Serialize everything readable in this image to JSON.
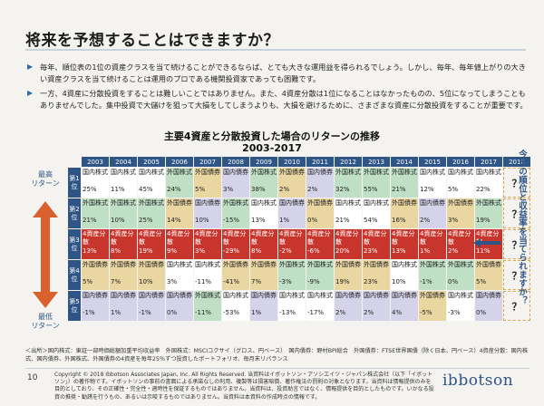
{
  "header": {
    "top_tag_a": "",
    "top_tag_b": ""
  },
  "slide": {
    "title": "将来を予想することはできますか？",
    "paragraph1": "毎年、順位表の1位の資産クラスを当て続けることができるならば、とても大きな運用益を得られるでしょう。しかし、毎年、毎年値上がりの大きい資産クラスを当て続けることは運用のプロである機関投資家であっても困難です。",
    "paragraph2": "一方、4資産に分散投資をすることは難しいことではありません。また、4資産分散は1位になることはなかったものの、5位になってしまうこともありませんでした。集中投資で大儲けを狙って大損をしてしまうよりも、大損を避けるために、さまざまな資産に分散投資をすることが重要です。",
    "chart_title": "主要4資産と分散投資した場合のリターンの推移",
    "chart_subtitle": "2003-2017",
    "side_top": "最高\nリターン",
    "side_bottom": "最低\nリターン",
    "vertical_note": "今後の順位と収益率を当てられますか？",
    "source": "＜出所＞国内株式：東証一部時価総額加重平均収益率　外国株式：MSCIコクサイ（グロス、円ベース）　国内債券：野村BPI総合　外国債券：FTSE世界国債（除く日本、円ベース）4資産分散：国内株式、国内債券、外国株式、外国債券の4資産を毎年25％ずつ投資したポートフォリオ、毎月末リバランス",
    "page_number": "10",
    "copyright": "Copyright © 2018 Ibbotson Associates Japan, Inc. All Rights Reserved. 当資料はイボットソン・アソシエイツ・ジャパン株式会社（以下「イボットソン」）の著作物です。イボットソンの事前の書面による承諾なしの利用、複製等は損害賠償、著作権法の罰則の対象となります。当資料は情報提供のみを目的としており、その正確性・完全性・適時性を保証するものではありません。当資料は、投資助言ではなく、情報提供を目的としたものです。いかなる投資の推奨・勧誘を行うもの、あるいは示唆するものではありません。当資料は本資料の作成時点の情報です。",
    "logo": "ibbotson"
  },
  "chart_data": {
    "type": "table",
    "years": [
      "2003",
      "2004",
      "2005",
      "2006",
      "2007",
      "2008",
      "2009",
      "2010",
      "2011",
      "2012",
      "2013",
      "2014",
      "2015",
      "2016",
      "2017",
      "2018"
    ],
    "ranks": [
      "第1位",
      "第2位",
      "第3位",
      "第4位",
      "第5位"
    ],
    "future_value": "？",
    "colors": {
      "国内株式": "#ffffff",
      "外国株式": "#bfe0c4",
      "国内債券": "#d5d3ea",
      "外国債券": "#e9d6a0",
      "4資産分散": "#c8352c"
    },
    "rows": [
      [
        [
          "国内株式",
          "25%"
        ],
        [
          "国内株式",
          "11%"
        ],
        [
          "国内株式",
          "45%"
        ],
        [
          "外国株式",
          "24%"
        ],
        [
          "外国債券",
          "5%"
        ],
        [
          "国内債券",
          "3%"
        ],
        [
          "外国株式",
          "38%"
        ],
        [
          "外国債券",
          "2%"
        ],
        [
          "国内債券",
          "2%"
        ],
        [
          "外国株式",
          "32%"
        ],
        [
          "外国株式",
          "55%"
        ],
        [
          "外国株式",
          "21%"
        ],
        [
          "国内株式",
          "12%"
        ],
        [
          "国内株式",
          "5%"
        ],
        [
          "国内株式",
          "22%"
        ]
      ],
      [
        [
          "外国株式",
          "21%"
        ],
        [
          "外国株式",
          "10%"
        ],
        [
          "外国株式",
          "25%"
        ],
        [
          "外国債券",
          "14%"
        ],
        [
          "国内債券",
          "10%"
        ],
        [
          "外国株式",
          "-15%"
        ],
        [
          "国内株式",
          "13%"
        ],
        [
          "国内債券",
          "1%"
        ],
        [
          "外国債券",
          "0%"
        ],
        [
          "国内株式",
          "21%"
        ],
        [
          "国内株式",
          "54%"
        ],
        [
          "外国債券",
          "16%"
        ],
        [
          "国内債券",
          "2%"
        ],
        [
          "外国債券",
          "3%"
        ],
        [
          "外国株式",
          "19%"
        ]
      ],
      [
        [
          "4資産分散",
          "13%"
        ],
        [
          "4資産分散",
          "8%"
        ],
        [
          "4資産分散",
          "19%"
        ],
        [
          "4資産分散",
          "9%"
        ],
        [
          "4資産分散",
          "3%"
        ],
        [
          "4資産分散",
          "-29%"
        ],
        [
          "4資産分散",
          "8%"
        ],
        [
          "4資産分散",
          "-2%"
        ],
        [
          "4資産分散",
          "-6%"
        ],
        [
          "4資産分散",
          "20%"
        ],
        [
          "4資産分散",
          "23%"
        ],
        [
          "4資産分散",
          "13%"
        ],
        [
          "4資産分散",
          "1%"
        ],
        [
          "4資産分散",
          "2%"
        ],
        [
          "4資産分散",
          "11%"
        ]
      ],
      [
        [
          "外国債券",
          "5%"
        ],
        [
          "外国債券",
          "7%"
        ],
        [
          "外国債券",
          "10%"
        ],
        [
          "国内株式",
          "3%"
        ],
        [
          "国内株式",
          "-11%"
        ],
        [
          "外国債券",
          "-41%"
        ],
        [
          "外国債券",
          "7%"
        ],
        [
          "外国株式",
          "-3%"
        ],
        [
          "外国株式",
          "-9%"
        ],
        [
          "外国債券",
          "19%"
        ],
        [
          "外国債券",
          "23%"
        ],
        [
          "国内株式",
          "10%"
        ],
        [
          "外国株式",
          "-1%"
        ],
        [
          "外国株式",
          "0%"
        ],
        [
          "外国債券",
          "5%"
        ]
      ],
      [
        [
          "国内債券",
          "-1%"
        ],
        [
          "国内債券",
          "1%"
        ],
        [
          "国内債券",
          "-1%"
        ],
        [
          "国内債券",
          "0%"
        ],
        [
          "外国株式",
          "-11%"
        ],
        [
          "国内株式",
          "-53%"
        ],
        [
          "国内債券",
          "1%"
        ],
        [
          "国内株式",
          "-13%"
        ],
        [
          "国内株式",
          "-17%"
        ],
        [
          "国内債券",
          "2%"
        ],
        [
          "国内債券",
          "2%"
        ],
        [
          "国内債券",
          "4%"
        ],
        [
          "外国債券",
          "-5%"
        ],
        [
          "国内株式",
          "-3%"
        ],
        [
          "国内債券",
          "0%"
        ]
      ]
    ]
  }
}
